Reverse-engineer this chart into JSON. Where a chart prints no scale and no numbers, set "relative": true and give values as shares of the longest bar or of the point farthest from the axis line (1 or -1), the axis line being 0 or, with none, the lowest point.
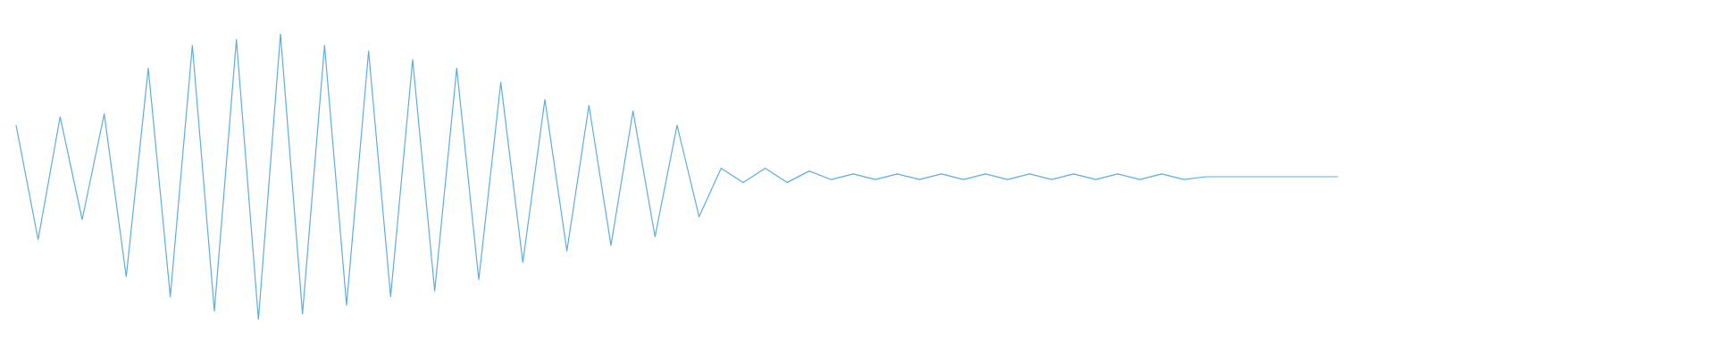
{
  "chart_data": {
    "type": "line",
    "relative": true,
    "categories": [
      null,
      null,
      null,
      null,
      null,
      null,
      null,
      null,
      null,
      null,
      null,
      null,
      null,
      null,
      null,
      null,
      null,
      null,
      null,
      null,
      null,
      null,
      null,
      null,
      null,
      null,
      null,
      null,
      null,
      null,
      null,
      null,
      null,
      null,
      null,
      null,
      null,
      null,
      null,
      null,
      null,
      null,
      null,
      null,
      null,
      null,
      null,
      null,
      null,
      null,
      null,
      null,
      null,
      null,
      null,
      null,
      null,
      null,
      null,
      null,
      null
    ],
    "series": [
      {
        "color": "#5dade2",
        "values": [
          0.68,
          0.28,
          0.71,
          0.35,
          0.72,
          0.15,
          0.88,
          0.08,
          0.96,
          0.03,
          0.98,
          0,
          1,
          0.02,
          0.96,
          0.05,
          0.94,
          0.08,
          0.91,
          0.1,
          0.88,
          0.14,
          0.83,
          0.2,
          0.77,
          0.24,
          0.75,
          0.26,
          0.73,
          0.29,
          0.68,
          0.36,
          0.53,
          0.48,
          0.53,
          0.48,
          0.52,
          0.49,
          0.51,
          0.49,
          0.51,
          0.49,
          0.51,
          0.49,
          0.51,
          0.49,
          0.51,
          0.49,
          0.51,
          0.49,
          0.51,
          0.49,
          0.51,
          0.49,
          0.5,
          0.5,
          0.5,
          0.5,
          0.5,
          0.5,
          0.5
        ]
      }
    ]
  }
}
